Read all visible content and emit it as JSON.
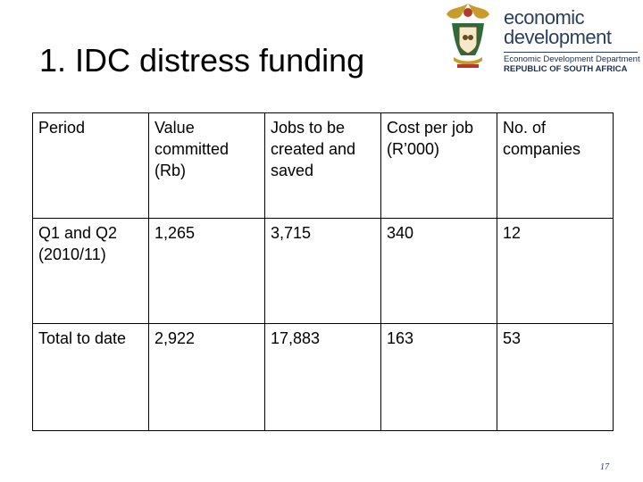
{
  "slide": {
    "title": "1. IDC distress funding",
    "page_number": "17"
  },
  "logo": {
    "line1": "economic",
    "line2": "development",
    "department": "Economic Development Department",
    "country": "REPUBLIC OF SOUTH AFRICA",
    "colors": {
      "text": "#2b3f5c",
      "crest_gold": "#c89b2a",
      "crest_green": "#2e6b3a",
      "crest_red": "#b23a2a"
    }
  },
  "table": {
    "headers": [
      "Period",
      "Value committed (Rb)",
      "Jobs to be created and saved",
      "Cost per job (R’000)",
      "No. of companies"
    ],
    "rows": [
      [
        "Q1 and Q2 (2010/11)",
        "1,265",
        "3,715",
        "340",
        "12"
      ],
      [
        "Total to date",
        "2,922",
        "17,883",
        "163",
        "53"
      ]
    ]
  }
}
